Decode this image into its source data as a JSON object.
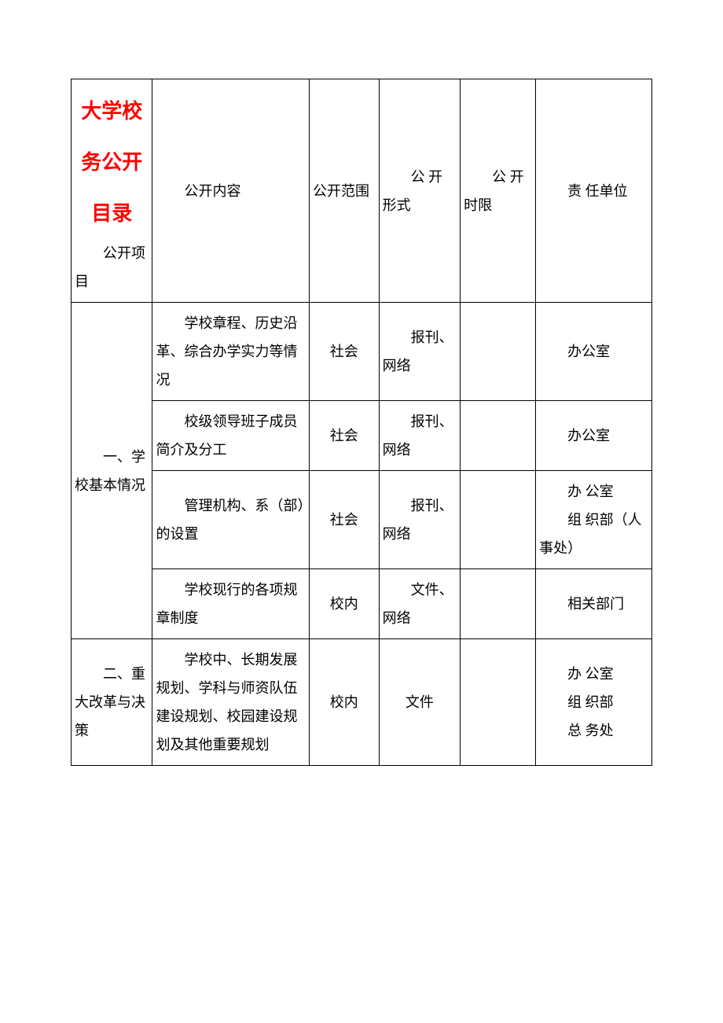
{
  "table": {
    "border_color": "#000000",
    "background_color": "#ffffff",
    "text_color": "#000000",
    "title_color": "#ff0000",
    "font_family": "SimSun",
    "base_fontsize": 18,
    "title_fontsize": 26,
    "columns": [
      {
        "key": "project",
        "width_pct": 14
      },
      {
        "key": "content",
        "width_pct": 27
      },
      {
        "key": "scope",
        "width_pct": 12
      },
      {
        "key": "form",
        "width_pct": 14
      },
      {
        "key": "time",
        "width_pct": 13
      },
      {
        "key": "dept",
        "width_pct": 20
      }
    ],
    "header": {
      "title": "大学校务公开目录",
      "project_label": "公开项目",
      "content_label": "公开内容",
      "scope_label": "公开范围",
      "form_label": "公 开形式",
      "time_label": "公 开时限",
      "dept_label": "责 任单位"
    },
    "sections": [
      {
        "category": "一、学校基本情况",
        "rows": [
          {
            "content": "学校章程、历史沿革、综合办学实力等情况",
            "scope": "社会",
            "form": "报刊、网络",
            "time": "",
            "dept": [
              "办公室"
            ]
          },
          {
            "content": "校级领导班子成员简介及分工",
            "scope": "社会",
            "form": "报刊、网络",
            "time": "",
            "dept": [
              "办公室"
            ]
          },
          {
            "content": "管理机构、系（部）的设置",
            "scope": "社会",
            "form": "报刊、网络",
            "time": "",
            "dept": [
              "办 公室",
              "组 织部（人事处）"
            ]
          },
          {
            "content": "学校现行的各项规章制度",
            "scope": "校内",
            "form": "文件、网络",
            "time": "",
            "dept": [
              "相关部门"
            ]
          }
        ]
      },
      {
        "category": "二、重大改革与决策",
        "rows": [
          {
            "content": "学校中、长期发展规划、学科与师资队伍建设规划、校园建设规划及其他重要规划",
            "scope": "校内",
            "form": "文件",
            "time": "",
            "dept": [
              "办 公室",
              "组 织部",
              "总 务处"
            ]
          }
        ]
      }
    ]
  }
}
